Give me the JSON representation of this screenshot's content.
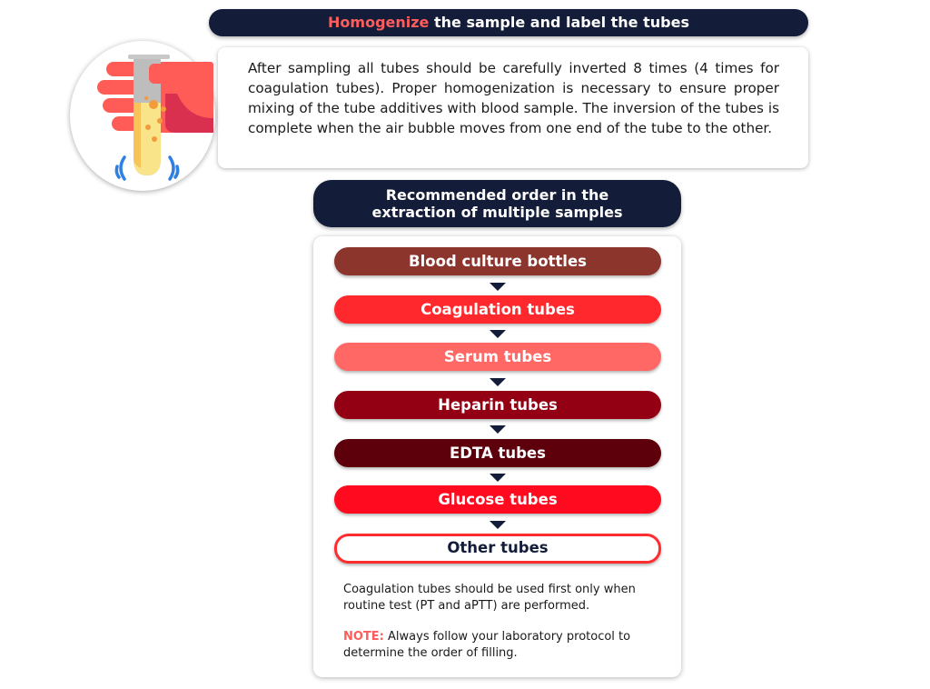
{
  "header": {
    "accent": "Homogenize",
    "rest": " the sample and label the tubes"
  },
  "intro_text": "After sampling all tubes should be carefully inverted 8 times (4 times for coagulation tubes). Proper homogenization is necessary to ensure proper mixing of the tube additives with blood sample. The inversion of the tubes is complete when the air bubble moves from one end of the tube to the other.",
  "icon": "hand-shaking-test-tube-icon",
  "order_title": {
    "line1": "Recommended order in the",
    "line2": "extraction of multiple samples"
  },
  "steps": [
    {
      "label": "Blood culture bottles",
      "color": "#8b352c"
    },
    {
      "label": "Coagulation tubes",
      "color": "#ff282c"
    },
    {
      "label": "Serum tubes",
      "color": "#ff6864"
    },
    {
      "label": "Heparin tubes",
      "color": "#930013"
    },
    {
      "label": "EDTA tubes",
      "color": "#5e000c"
    },
    {
      "label": "Glucose tubes",
      "color": "#ff0a1e"
    },
    {
      "label": "Other tubes",
      "color": "#ffffff"
    }
  ],
  "notes": {
    "coag": "Coagulation tubes should be used first only when routine test (PT and aPTT) are performed.",
    "note_label": "NOTE:",
    "note_text": " Always follow your laboratory protocol to determine the order of filling."
  }
}
